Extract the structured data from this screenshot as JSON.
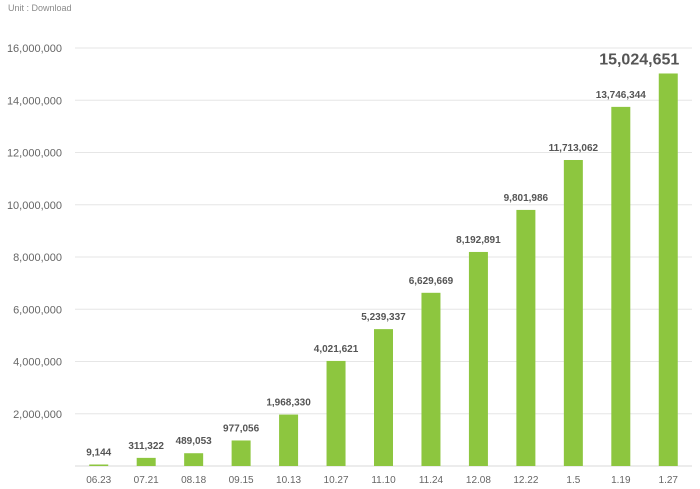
{
  "unit_label": "Unit : Download",
  "colors": {
    "bar": "#8dc63f",
    "grid": "#e6e6e6",
    "text": "#555555"
  },
  "chart_data": {
    "type": "bar",
    "title": "",
    "xlabel": "",
    "ylabel": "",
    "ylim": [
      0,
      16000000
    ],
    "yticks": [
      2000000,
      4000000,
      6000000,
      8000000,
      10000000,
      12000000,
      14000000,
      16000000
    ],
    "ytick_labels": [
      "2,000,000",
      "4,000,000",
      "6,000,000",
      "8,000,000",
      "10,000,000",
      "12,000,000",
      "14,000,000",
      "16,000,000"
    ],
    "grid": true,
    "categories": [
      "06.23",
      "07.21",
      "08.18",
      "09.15",
      "10.13",
      "10.27",
      "11.10",
      "11.24",
      "12.08",
      "12.22",
      "1.5",
      "1.19",
      "1.27"
    ],
    "values": [
      9144,
      311322,
      489053,
      977056,
      1968330,
      4021621,
      5239337,
      6629669,
      8192891,
      9801986,
      11713062,
      13746344,
      15024651
    ],
    "value_labels": [
      "9,144",
      "311,322",
      "489,053",
      "977,056",
      "1,968,330",
      "4,021,621",
      "5,239,337",
      "6,629,669",
      "8,192,891",
      "9,801,986",
      "11,713,062",
      "13,746,344",
      "15,024,651"
    ]
  }
}
